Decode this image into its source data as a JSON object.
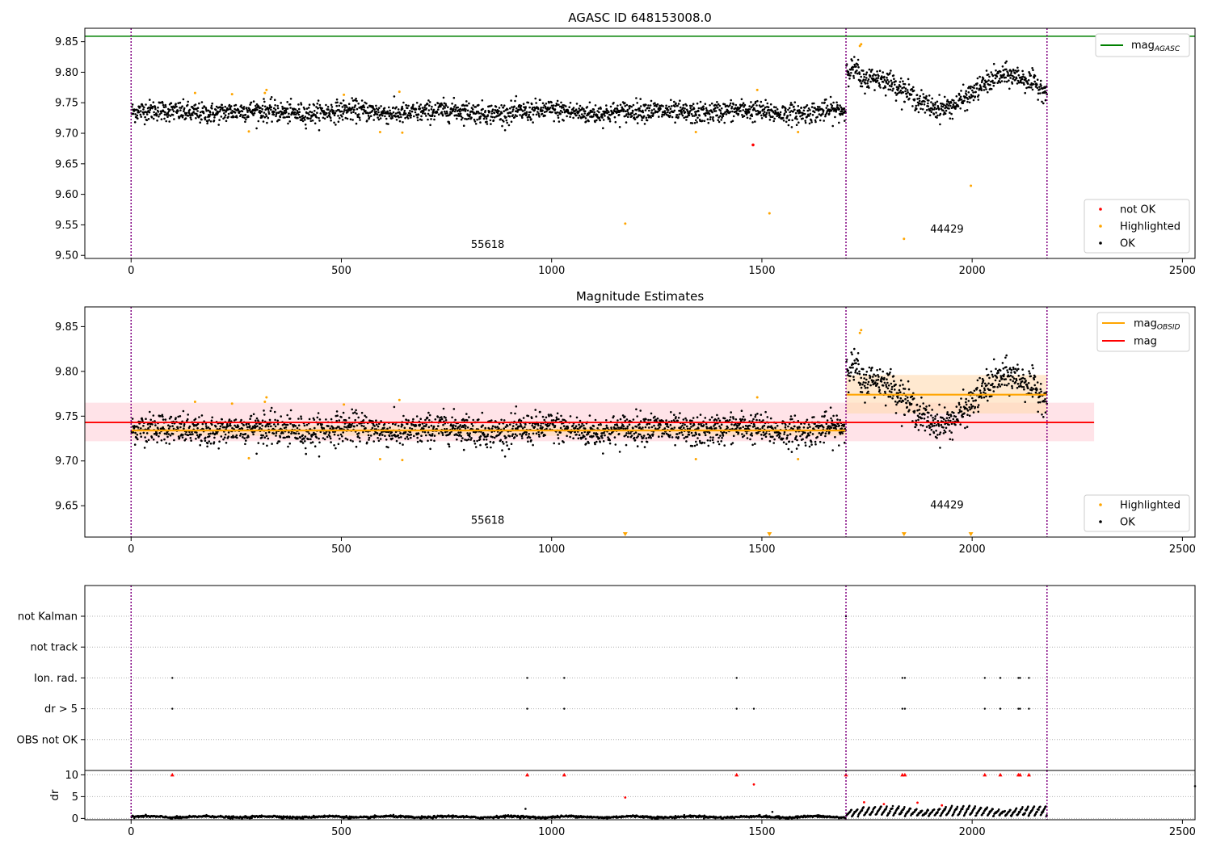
{
  "colors": {
    "ok": "#000000",
    "highlighted": "#ffa500",
    "not_ok": "#ff0000",
    "mag_agasc_line": "#008000",
    "mag_obsid_line": "#ffa500",
    "mag_line": "#ff0000",
    "obs_boundary": "#800080",
    "band_mag": "#ffc0cb",
    "band_obsid": "#ffdab0"
  },
  "chart_data": [
    {
      "id": "p1",
      "type": "scatter",
      "title": "AGASC ID 648153008.0",
      "xlim": [
        -110,
        2530
      ],
      "ylim": [
        9.495,
        9.872
      ],
      "x_ticks": [
        "0",
        "500",
        "1000",
        "1500",
        "2000",
        "2500"
      ],
      "x_tick_values": [
        0,
        500,
        1000,
        1500,
        2000,
        2500
      ],
      "y_ticks": [
        "9.50",
        "9.55",
        "9.60",
        "9.65",
        "9.70",
        "9.75",
        "9.80",
        "9.85"
      ],
      "y_tick_values": [
        9.5,
        9.55,
        9.6,
        9.65,
        9.7,
        9.75,
        9.8,
        9.85
      ],
      "grid": false,
      "obs_boundaries": [
        0,
        1700,
        2178
      ],
      "obs_labels": [
        {
          "text": "55618",
          "x": 848,
          "y": 9.512
        },
        {
          "text": "44429",
          "x": 1940,
          "y": 9.537
        }
      ],
      "mag_agasc": 9.859,
      "series_ok_segments": [
        {
          "x0": 0,
          "x1": 1700,
          "mean": 9.735,
          "amp": 0.009,
          "scatter": 0.0085
        },
        {
          "x0": 1700,
          "x1": 2178,
          "mean": 9.775,
          "amp": 0.028,
          "scatter": 0.009
        }
      ],
      "highlighted_points": [
        {
          "x": 152,
          "y": 9.766
        },
        {
          "x": 240,
          "y": 9.764
        },
        {
          "x": 280,
          "y": 9.703
        },
        {
          "x": 318,
          "y": 9.766
        },
        {
          "x": 322,
          "y": 9.771
        },
        {
          "x": 506,
          "y": 9.763
        },
        {
          "x": 592,
          "y": 9.702
        },
        {
          "x": 638,
          "y": 9.768
        },
        {
          "x": 645,
          "y": 9.701
        },
        {
          "x": 1175,
          "y": 9.552
        },
        {
          "x": 1343,
          "y": 9.702
        },
        {
          "x": 1489,
          "y": 9.771
        },
        {
          "x": 1518,
          "y": 9.569
        },
        {
          "x": 1586,
          "y": 9.702
        },
        {
          "x": 1733,
          "y": 9.843
        },
        {
          "x": 1736,
          "y": 9.846
        },
        {
          "x": 1838,
          "y": 9.527
        },
        {
          "x": 1997,
          "y": 9.614
        }
      ],
      "not_ok_points": [
        {
          "x": 1479,
          "y": 9.681
        }
      ],
      "legend_top": {
        "placement": "top-right",
        "entries": [
          {
            "label_main": "mag",
            "label_sub": "AGASC",
            "kind": "line",
            "color": "#008000"
          }
        ]
      },
      "legend_bottom": {
        "placement": "bottom-right",
        "entries": [
          {
            "label": "not OK",
            "kind": "dot",
            "color": "#ff0000"
          },
          {
            "label": "Highlighted",
            "kind": "dot",
            "color": "#ffa500"
          },
          {
            "label": "OK",
            "kind": "dot",
            "color": "#000000"
          }
        ]
      }
    },
    {
      "id": "p2",
      "type": "scatter",
      "title": "Magnitude Estimates",
      "xlim": [
        -110,
        2530
      ],
      "ylim": [
        9.615,
        9.872
      ],
      "x_ticks": [
        "0",
        "500",
        "1000",
        "1500",
        "2000",
        "2500"
      ],
      "x_tick_values": [
        0,
        500,
        1000,
        1500,
        2000,
        2500
      ],
      "y_ticks": [
        "9.65",
        "9.70",
        "9.75",
        "9.80",
        "9.85"
      ],
      "y_tick_values": [
        9.65,
        9.7,
        9.75,
        9.8,
        9.85
      ],
      "grid": false,
      "obs_boundaries": [
        0,
        1700,
        2178
      ],
      "obs_labels": [
        {
          "text": "55618",
          "x": 848,
          "y": 9.63
        },
        {
          "text": "44429",
          "x": 1940,
          "y": 9.647
        }
      ],
      "mag": {
        "value": 9.743,
        "band": [
          9.722,
          9.765
        ],
        "x0": -110,
        "x1": 2290
      },
      "mag_obsid": [
        {
          "x0": 0,
          "x1": 1700,
          "value": 9.734,
          "band": [
            9.728,
            9.74
          ]
        },
        {
          "x0": 1700,
          "x1": 2178,
          "value": 9.774,
          "band": [
            9.753,
            9.796
          ]
        }
      ],
      "highlighted_points": [
        {
          "x": 152,
          "y": 9.766
        },
        {
          "x": 240,
          "y": 9.764
        },
        {
          "x": 280,
          "y": 9.703
        },
        {
          "x": 318,
          "y": 9.766
        },
        {
          "x": 322,
          "y": 9.771
        },
        {
          "x": 506,
          "y": 9.763
        },
        {
          "x": 592,
          "y": 9.702
        },
        {
          "x": 638,
          "y": 9.768
        },
        {
          "x": 645,
          "y": 9.701
        },
        {
          "x": 1343,
          "y": 9.702
        },
        {
          "x": 1489,
          "y": 9.771
        },
        {
          "x": 1586,
          "y": 9.702
        },
        {
          "x": 1733,
          "y": 9.843
        },
        {
          "x": 1736,
          "y": 9.846
        }
      ],
      "offscale_markers": [
        1175,
        1518,
        1838,
        1997
      ],
      "legend_top": {
        "placement": "top-right",
        "entries": [
          {
            "label_main": "mag",
            "label_sub": "OBSID",
            "kind": "line",
            "color": "#ffa500"
          },
          {
            "label_main": "mag",
            "label_sub": "",
            "kind": "line",
            "color": "#ff0000"
          }
        ]
      },
      "legend_bottom": {
        "placement": "bottom-right",
        "entries": [
          {
            "label": "Highlighted",
            "kind": "dot",
            "color": "#ffa500"
          },
          {
            "label": "OK",
            "kind": "dot",
            "color": "#000000"
          }
        ]
      }
    },
    {
      "id": "p3",
      "type": "scatter",
      "title": "",
      "xlim": [
        -110,
        2530
      ],
      "categories": [
        "not Kalman",
        "not track",
        "Ion. rad.",
        "dr > 5",
        "OBS not OK"
      ],
      "grid": "dotted horizontal",
      "obs_boundaries": [
        0,
        1700,
        2178
      ],
      "flags": {
        "not Kalman": [
          1700
        ],
        "not track": [],
        "Ion. rad.": [
          98,
          942,
          1030,
          1440,
          1834,
          1840,
          2030,
          2067,
          2110,
          2114,
          2135
        ],
        "dr > 5": [
          98,
          942,
          1030,
          1440,
          1481,
          1834,
          1840,
          2030,
          2067,
          2110,
          2114,
          2135
        ],
        "OBS not OK": []
      }
    },
    {
      "id": "p4",
      "type": "scatter",
      "title": "",
      "ylabel": "dr",
      "xlim": [
        -110,
        2530
      ],
      "ylim": [
        -0.3,
        11.0
      ],
      "x_ticks": [
        "0",
        "500",
        "1000",
        "1500",
        "2000",
        "2500"
      ],
      "x_tick_values": [
        0,
        500,
        1000,
        1500,
        2000,
        2500
      ],
      "y_ticks": [
        "0",
        "5",
        "10"
      ],
      "y_tick_values": [
        0,
        5,
        10
      ],
      "grid": "dotted horizontal",
      "obs_boundaries": [
        0,
        1700,
        2178
      ],
      "dr_segments": [
        {
          "x0": 0,
          "x1": 1700,
          "mean": 0.35,
          "scatter": 0.18
        },
        {
          "x0": 1700,
          "x1": 2178,
          "mean": 1.9,
          "scatter": 0.6
        }
      ],
      "clipped_markers": [
        98,
        942,
        1030,
        1440,
        1700,
        1834,
        1840,
        2030,
        2067,
        2110,
        2114,
        2135
      ],
      "red_points": [
        {
          "x": 1481,
          "y": 7.8
        },
        {
          "x": 1175,
          "y": 4.8
        },
        {
          "x": 1743,
          "y": 3.7
        },
        {
          "x": 1870,
          "y": 3.6
        },
        {
          "x": 1928,
          "y": 3.0
        },
        {
          "x": 1790,
          "y": 3.3
        }
      ],
      "black_outliers": [
        {
          "x": 938,
          "y": 2.2
        },
        {
          "x": 1525,
          "y": 1.5
        },
        {
          "x": 2530,
          "y": 7.4
        }
      ]
    }
  ]
}
